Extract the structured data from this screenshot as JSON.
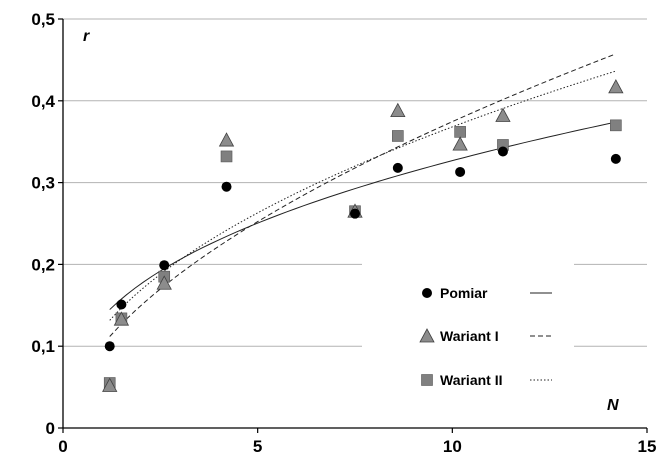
{
  "chart_data": {
    "type": "scatter",
    "title": "",
    "xlabel": "N",
    "ylabel": "r",
    "xlim": [
      0,
      15
    ],
    "ylim": [
      0,
      0.5
    ],
    "x_ticks": [
      "0",
      "5",
      "10",
      "15"
    ],
    "y_ticks": [
      "0",
      "0,1",
      "0,2",
      "0,3",
      "0,4",
      "0,5"
    ],
    "grid": "horizontal",
    "legend_position": "lower-right",
    "series": [
      {
        "name": "Pomiar",
        "marker": "circle",
        "color": "#000000",
        "points": [
          [
            1.2,
            0.1
          ],
          [
            1.5,
            0.151
          ],
          [
            2.6,
            0.199
          ],
          [
            4.2,
            0.295
          ],
          [
            7.5,
            0.262
          ],
          [
            8.6,
            0.318
          ],
          [
            10.2,
            0.313
          ],
          [
            11.3,
            0.338
          ],
          [
            14.2,
            0.329
          ]
        ],
        "trend": {
          "style": "solid",
          "kind": "power",
          "a": 0.135,
          "b": 0.384
        }
      },
      {
        "name": "Wariant I",
        "marker": "triangle",
        "color": "#8c8c8c",
        "points": [
          [
            1.2,
            0.052
          ],
          [
            1.5,
            0.133
          ],
          [
            2.6,
            0.177
          ],
          [
            4.2,
            0.352
          ],
          [
            7.5,
            0.265
          ],
          [
            8.6,
            0.388
          ],
          [
            10.2,
            0.347
          ],
          [
            11.3,
            0.382
          ],
          [
            14.2,
            0.417
          ]
        ],
        "trend": {
          "style": "dashed",
          "kind": "power",
          "a": 0.1008,
          "b": 0.57
        }
      },
      {
        "name": "Wariant II",
        "marker": "square",
        "color": "#808080",
        "points": [
          [
            1.2,
            0.055
          ],
          [
            1.5,
            0.134
          ],
          [
            2.6,
            0.185
          ],
          [
            4.2,
            0.332
          ],
          [
            7.5,
            0.265
          ],
          [
            8.6,
            0.357
          ],
          [
            10.2,
            0.362
          ],
          [
            11.3,
            0.346
          ],
          [
            14.2,
            0.37
          ]
        ],
        "trend": {
          "style": "dotted",
          "kind": "power",
          "a": 0.1205,
          "b": 0.485
        }
      }
    ]
  }
}
